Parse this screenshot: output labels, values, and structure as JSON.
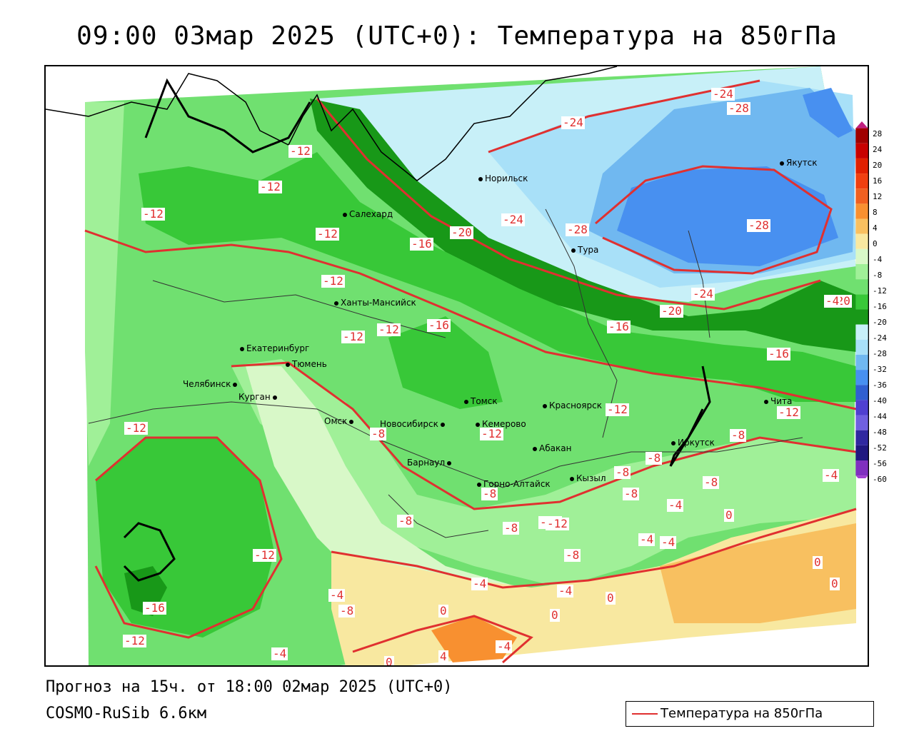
{
  "title": "09:00 03мар 2025 (UTC+0): Температура на 850гПа",
  "footer": {
    "forecast": "Прогноз на 15ч. от 18:00 02мар 2025 (UTC+0)",
    "model": "COSMO-RuSib 6.6км"
  },
  "legend": {
    "label": "Температура на 850гПа",
    "line_color": "#e03030"
  },
  "colorbar": {
    "labels": [
      "28",
      "24",
      "20",
      "16",
      "12",
      "8",
      "4",
      "0",
      "-4",
      "-8",
      "-12",
      "-16",
      "-20",
      "-24",
      "-28",
      "-32",
      "-36",
      "-40",
      "-44",
      "-48",
      "-52",
      "-56",
      "-60"
    ],
    "colors": [
      "#a00000",
      "#c80000",
      "#e02000",
      "#f04010",
      "#f06020",
      "#f89030",
      "#f8c060",
      "#f8e8a0",
      "#d8f8c8",
      "#a0f098",
      "#70e070",
      "#38c838",
      "#189818",
      "#c8f0f8",
      "#a8e0f8",
      "#70b8f0",
      "#4890f0",
      "#3060d0",
      "#5040d0",
      "#7060e0",
      "#3028a0",
      "#201880",
      "#8030c0"
    ]
  },
  "cities": [
    {
      "name": "Якутск"
    },
    {
      "name": "Норильск"
    },
    {
      "name": "Салехард"
    },
    {
      "name": "Тура"
    },
    {
      "name": "Ханты-Мансийск"
    },
    {
      "name": "Екатеринбург"
    },
    {
      "name": "Тюмень"
    },
    {
      "name": "Челябинск"
    },
    {
      "name": "Курган"
    },
    {
      "name": "Омск"
    },
    {
      "name": "Новосибирск"
    },
    {
      "name": "Томск"
    },
    {
      "name": "Кемерово"
    },
    {
      "name": "Красноярск"
    },
    {
      "name": "Барнаул"
    },
    {
      "name": "Абакан"
    },
    {
      "name": "Иркутск"
    },
    {
      "name": "Чита"
    },
    {
      "name": "Горно-Алтайск"
    },
    {
      "name": "Кызыл"
    }
  ],
  "contour_labels": [
    "-24",
    "-28",
    "-24",
    "-12",
    "-12",
    "-12",
    "-12",
    "-16",
    "-20",
    "-24",
    "-28",
    "-28",
    "-16",
    "-12",
    "-12",
    "-12",
    "-12",
    "-20",
    "-16",
    "-20",
    "-24",
    "-16",
    "-12",
    "-12",
    "-12",
    "-8",
    "-8",
    "-8",
    "-4",
    "-8",
    "-8",
    "-12",
    "-8",
    "-8",
    "-4",
    "0",
    "-12",
    "-4",
    "-4",
    "-4",
    "-4",
    "0",
    "0",
    "0",
    "0",
    "-16",
    "-12",
    "-4",
    "0",
    "0",
    "4",
    "-4",
    "-8",
    "-8",
    "-4",
    "-8",
    "-4",
    "-8",
    "-12"
  ]
}
